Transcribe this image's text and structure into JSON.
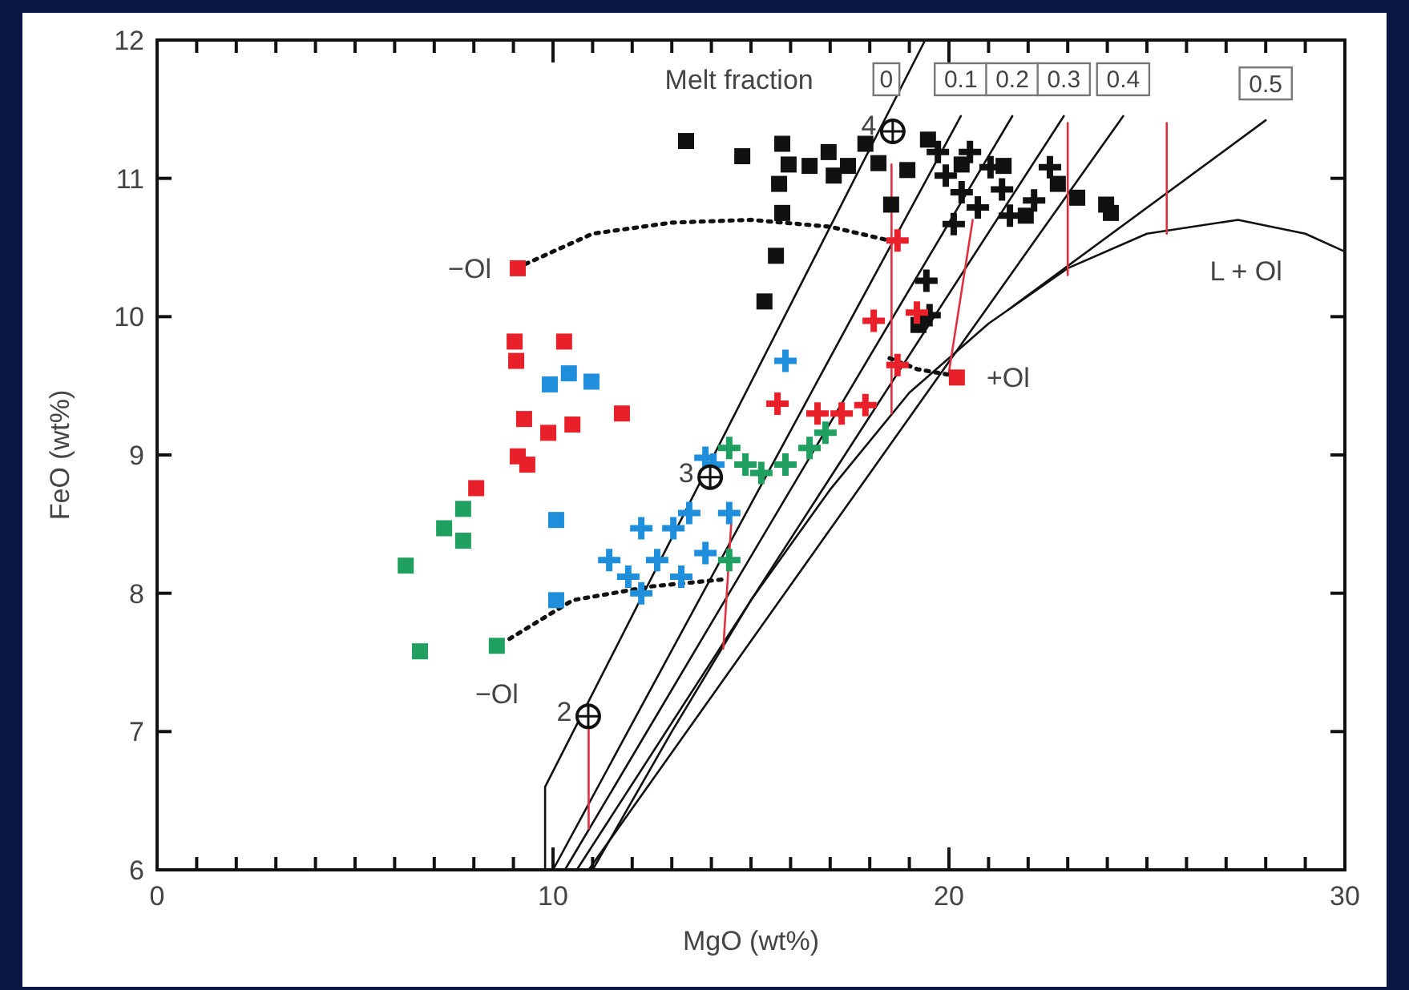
{
  "chart_data": {
    "type": "scatter",
    "xlabel": "MgO (wt%)",
    "ylabel": "FeO (wt%)",
    "xlim": [
      0,
      30
    ],
    "ylim": [
      6,
      12
    ],
    "xticks": [
      0,
      {
        "value": 1,
        "label": null
      },
      {
        "value": 2,
        "label": null
      },
      {
        "value": 3,
        "label": null
      },
      {
        "value": 4,
        "label": null
      },
      {
        "value": 5,
        "label": null
      },
      {
        "value": 6,
        "label": null
      },
      {
        "value": 7,
        "label": null
      },
      {
        "value": 8,
        "label": null
      },
      {
        "value": 9,
        "label": null
      },
      10,
      {
        "value": 11,
        "label": null
      },
      {
        "value": 12,
        "label": null
      },
      {
        "value": 13,
        "label": null
      },
      {
        "value": 14,
        "label": null
      },
      {
        "value": 15,
        "label": null
      },
      {
        "value": 16,
        "label": null
      },
      {
        "value": 17,
        "label": null
      },
      {
        "value": 18,
        "label": null
      },
      {
        "value": 19,
        "label": null
      },
      20,
      {
        "value": 21,
        "label": null
      },
      {
        "value": 22,
        "label": null
      },
      {
        "value": 23,
        "label": null
      },
      {
        "value": 24,
        "label": null
      },
      {
        "value": 25,
        "label": null
      },
      {
        "value": 26,
        "label": null
      },
      {
        "value": 27,
        "label": null
      },
      {
        "value": 28,
        "label": null
      },
      {
        "value": 29,
        "label": null
      },
      30
    ],
    "yticks": [
      6,
      7,
      8,
      9,
      10,
      11,
      12
    ],
    "grid": false,
    "series": [
      {
        "type": "line",
        "color": "#111111",
        "line_style": "solid",
        "marker": "none",
        "x": [
          9.8,
          9.8,
          19.4
        ],
        "values": [
          6,
          6.6,
          12
        ]
      },
      {
        "type": "line",
        "color": "#111111",
        "line_style": "solid",
        "marker": "none",
        "x": [
          10.0,
          20.3
        ],
        "values": [
          6.0,
          11.45
        ]
      },
      {
        "type": "line",
        "color": "#111111",
        "line_style": "solid",
        "marker": "none",
        "x": [
          10.3,
          21.6
        ],
        "values": [
          6.0,
          11.45
        ]
      },
      {
        "type": "line",
        "color": "#111111",
        "line_style": "solid",
        "marker": "none",
        "x": [
          10.6,
          22.9
        ],
        "values": [
          6.0,
          11.45
        ]
      },
      {
        "type": "line",
        "color": "#111111",
        "line_style": "solid",
        "marker": "none",
        "x": [
          10.9,
          24.4
        ],
        "values": [
          6.0,
          11.45
        ]
      },
      {
        "type": "line",
        "color": "#111111",
        "line_style": "solid",
        "marker": "none",
        "x": [
          21.5,
          28.0
        ],
        "values": [
          10.05,
          11.42
        ]
      },
      {
        "type": "line",
        "color": "#111111",
        "line_style": "solid",
        "marker": "none",
        "x": [
          11.0,
          13,
          15,
          17,
          19,
          21,
          23,
          25,
          27.3,
          29,
          30
        ],
        "values": [
          6.0,
          7.0,
          7.95,
          8.75,
          9.45,
          9.95,
          10.35,
          10.6,
          10.7,
          10.6,
          10.47
        ]
      },
      {
        "type": "line",
        "color": "#e03040",
        "line_style": "solid",
        "marker": "none",
        "x": [
          23.0,
          23.0
        ],
        "values": [
          11.4,
          10.3
        ]
      },
      {
        "type": "line",
        "color": "#e03040",
        "line_style": "solid",
        "marker": "none",
        "x": [
          25.5,
          25.5
        ],
        "values": [
          11.4,
          10.6
        ]
      },
      {
        "type": "line",
        "color": "#e03040",
        "line_style": "solid",
        "marker": "none",
        "x": [
          18.55,
          18.55
        ],
        "values": [
          11.1,
          9.3
        ]
      },
      {
        "type": "line",
        "color": "#e03040",
        "line_style": "solid",
        "marker": "none",
        "x": [
          20.6,
          20.0
        ],
        "values": [
          10.7,
          9.6
        ]
      },
      {
        "type": "line",
        "color": "#e03040",
        "line_style": "solid",
        "marker": "none",
        "x": [
          10.9,
          10.9
        ],
        "values": [
          7.05,
          6.3
        ]
      },
      {
        "type": "line",
        "color": "#e03040",
        "line_style": "solid",
        "marker": "none",
        "x": [
          14.5,
          14.3
        ],
        "values": [
          8.5,
          7.6
        ]
      },
      {
        "type": "line",
        "color": "#111111",
        "line_style": "dotted",
        "marker": "none",
        "x": [
          9.3,
          11,
          13,
          15,
          17,
          18.5
        ],
        "values": [
          10.38,
          10.6,
          10.68,
          10.7,
          10.65,
          10.55
        ]
      },
      {
        "type": "line",
        "color": "#111111",
        "line_style": "dotted",
        "marker": "none",
        "x": [
          18.5,
          19.2,
          20.0
        ],
        "values": [
          9.7,
          9.62,
          9.58
        ]
      },
      {
        "type": "line",
        "color": "#111111",
        "line_style": "dotted",
        "marker": "none",
        "x": [
          8.9,
          10.5,
          12.5,
          14.3
        ],
        "values": [
          7.67,
          7.95,
          8.05,
          8.1
        ]
      },
      {
        "color": "#111111",
        "marker": "square",
        "x": [
          13.36,
          14.78,
          15.79,
          15.95,
          15.71,
          16.48,
          16.96,
          17.09,
          17.45,
          15.79,
          15.63,
          15.34,
          17.89,
          18.22,
          18.54,
          18.95,
          19.47,
          20.32,
          21.38,
          22.75,
          23.24,
          23.97,
          24.09,
          19.23,
          21.94
        ],
        "values": [
          11.27,
          11.16,
          11.25,
          11.1,
          10.96,
          11.09,
          11.19,
          11.02,
          11.09,
          10.75,
          10.44,
          10.11,
          11.25,
          11.11,
          10.81,
          11.06,
          11.28,
          11.1,
          11.09,
          10.96,
          10.86,
          10.81,
          10.75,
          9.94,
          10.73
        ]
      },
      {
        "color": "#111111",
        "marker": "cross",
        "x": [
          19.72,
          19.92,
          20.32,
          20.73,
          21.05,
          21.34,
          21.54,
          22.15,
          22.55,
          20.53,
          20.12,
          19.43,
          19.51
        ],
        "values": [
          11.19,
          11.02,
          10.9,
          10.79,
          11.08,
          10.92,
          10.73,
          10.84,
          11.08,
          11.19,
          10.67,
          10.26,
          10.01
        ]
      },
      {
        "color": "#e8202a",
        "marker": "square",
        "x": [
          9.11,
          9.03,
          9.07,
          10.28,
          9.27,
          9.88,
          10.49,
          11.74,
          8.06,
          9.11,
          9.35,
          20.2
        ],
        "values": [
          10.35,
          9.82,
          9.68,
          9.82,
          9.26,
          9.16,
          9.22,
          9.3,
          8.76,
          8.99,
          8.93,
          9.56
        ]
      },
      {
        "color": "#e8202a",
        "marker": "cross",
        "x": [
          18.7,
          18.1,
          19.19,
          18.7,
          17.89,
          17.29,
          16.68,
          15.67
        ],
        "values": [
          10.55,
          9.97,
          10.03,
          9.65,
          9.36,
          9.3,
          9.3,
          9.37
        ]
      },
      {
        "color": "#1f8fdc",
        "marker": "square",
        "x": [
          9.92,
          10.4,
          10.97,
          10.08,
          10.08
        ],
        "values": [
          9.51,
          9.59,
          9.53,
          8.53,
          7.95
        ]
      },
      {
        "color": "#1f8fdc",
        "marker": "cross",
        "x": [
          15.87,
          11.42,
          11.9,
          12.23,
          12.63,
          13.04,
          13.44,
          13.85,
          14.05,
          13.85,
          13.24,
          12.23,
          14.45
        ],
        "values": [
          9.68,
          8.24,
          8.12,
          8.47,
          8.24,
          8.47,
          8.58,
          8.98,
          8.93,
          8.29,
          8.12,
          8.0,
          8.58
        ]
      },
      {
        "color": "#20a060",
        "marker": "square",
        "x": [
          6.28,
          7.25,
          7.73,
          7.73,
          6.64,
          8.58
        ],
        "values": [
          8.2,
          8.47,
          8.61,
          8.38,
          7.58,
          7.62
        ]
      },
      {
        "color": "#20a060",
        "marker": "cross",
        "x": [
          14.45,
          14.86,
          15.26,
          15.87,
          16.48,
          16.88,
          14.45
        ],
        "values": [
          9.05,
          8.93,
          8.87,
          8.93,
          9.05,
          9.16,
          8.24
        ]
      },
      {
        "color": "#111111",
        "marker": "circle",
        "x": [
          10.89,
          13.97,
          18.58
        ],
        "values": [
          7.11,
          8.84,
          11.34
        ]
      }
    ],
    "annotations": [
      "Melt fraction",
      {
        "text": "0",
        "x": 18.42,
        "y": 11.45
      },
      {
        "text": "0.1",
        "x": 20.3,
        "y": 11.45
      },
      {
        "text": "0.2",
        "x": 21.6,
        "y": 11.45
      },
      {
        "text": "0.3",
        "x": 22.9,
        "y": 11.45
      },
      {
        "text": "0.4",
        "x": 24.4,
        "y": 11.45
      },
      {
        "text": "0.5",
        "x": 28.0,
        "y": 11.42
      },
      {
        "text": "−Ol",
        "x": 9.11,
        "y": 10.35
      },
      {
        "text": "+Ol",
        "x": 20.2,
        "y": 9.56
      },
      {
        "text": "−Ol",
        "x": 8.58,
        "y": 7.62
      },
      {
        "text": "L + Ol",
        "x": 27.3,
        "y": 10.7
      },
      {
        "text": "2",
        "x": 10.89,
        "y": 7.11
      },
      {
        "text": "3",
        "x": 13.97,
        "y": 8.84
      },
      {
        "text": "4",
        "x": 18.58,
        "y": 11.34
      }
    ]
  }
}
